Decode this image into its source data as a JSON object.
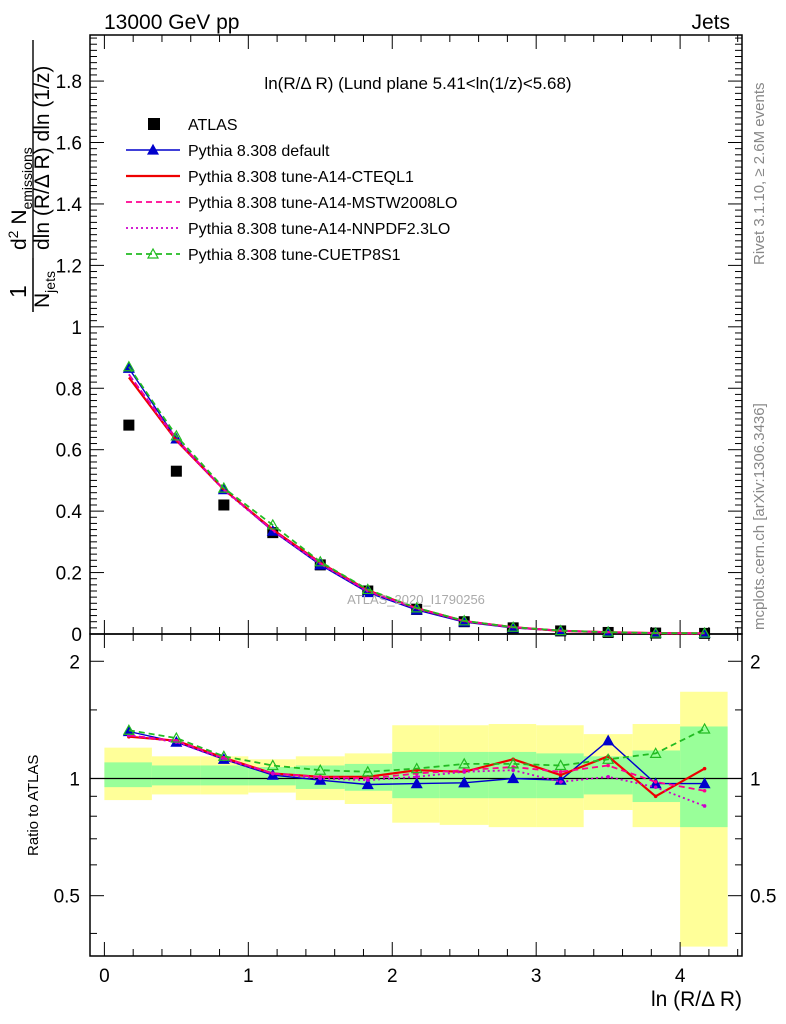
{
  "header": {
    "left": "13000 GeV pp",
    "right": "Jets"
  },
  "side_text": {
    "rivet": "Rivet 3.1.10, ≥ 2.6M events",
    "mcplots": "mcplots.cern.ch [arXiv:1306.3436]"
  },
  "watermark": "ATLAS_2020_I1790256",
  "chart_data": [
    {
      "type": "scatter",
      "panel": "main",
      "title": "ln(R/Δ R) (Lund plane 5.41<ln(1/z)<5.68)",
      "ylabel": "1/N_jets d²N_emissions / dln(R/Δ R) dln(1/z)",
      "ylim": [
        0,
        1.95
      ],
      "yticks": [
        "0",
        "0.2",
        "0.4",
        "0.6",
        "0.8",
        "1",
        "1.2",
        "1.4",
        "1.6",
        "1.8"
      ],
      "x": [
        0.17,
        0.5,
        0.83,
        1.17,
        1.5,
        1.83,
        2.17,
        2.5,
        2.84,
        3.17,
        3.5,
        3.83,
        4.17
      ],
      "series": [
        {
          "name": "ATLAS",
          "color": "#000000",
          "style": "marker-square",
          "values": [
            0.68,
            0.53,
            0.42,
            0.33,
            0.225,
            0.14,
            0.08,
            0.04,
            0.02,
            0.01,
            0.005,
            0.003,
            0.002
          ]
        },
        {
          "name": "Pythia 8.308 default",
          "color": "#0000cc",
          "style": "line-triangle",
          "values": [
            0.865,
            0.635,
            0.47,
            0.335,
            0.225,
            0.135,
            0.078,
            0.039,
            0.02,
            0.01,
            0.006,
            0.003,
            0.002
          ]
        },
        {
          "name": "Pythia 8.308 tune-A14-CTEQL1",
          "color": "#ee0000",
          "style": "solid",
          "values": [
            0.835,
            0.63,
            0.47,
            0.34,
            0.232,
            0.142,
            0.084,
            0.042,
            0.022,
            0.01,
            0.006,
            0.003,
            0.002
          ]
        },
        {
          "name": "Pythia 8.308 tune-A14-MSTW2008LO",
          "color": "#ff0090",
          "style": "dashed",
          "values": [
            0.845,
            0.635,
            0.47,
            0.338,
            0.23,
            0.14,
            0.083,
            0.042,
            0.022,
            0.011,
            0.006,
            0.003,
            0.002
          ]
        },
        {
          "name": "Pythia 8.308 tune-A14-NNPDF2.3LO",
          "color": "#cc00cc",
          "style": "dotted",
          "values": [
            0.845,
            0.63,
            0.468,
            0.336,
            0.228,
            0.138,
            0.082,
            0.042,
            0.021,
            0.01,
            0.005,
            0.003,
            0.002
          ]
        },
        {
          "name": "Pythia 8.308 tune-CUETP8S1",
          "color": "#22bb22",
          "style": "dashed-open-triangle",
          "values": [
            0.87,
            0.645,
            0.475,
            0.355,
            0.235,
            0.145,
            0.085,
            0.043,
            0.022,
            0.011,
            0.006,
            0.003,
            0.003
          ]
        }
      ]
    },
    {
      "type": "line",
      "panel": "ratio",
      "ylabel": "Ratio to ATLAS",
      "xlabel": "ln (R/Δ R)",
      "ylim": [
        0.35,
        2.35
      ],
      "yscale": "log",
      "yticks": [
        "0.5",
        "1",
        "2"
      ],
      "xticks": [
        "0",
        "1",
        "2",
        "3",
        "4"
      ],
      "xlim": [
        -0.1,
        4.43
      ],
      "bin_edges": [
        0,
        0.33,
        0.67,
        1.0,
        1.33,
        1.67,
        2.0,
        2.33,
        2.67,
        3.0,
        3.33,
        3.67,
        4.0,
        4.33
      ],
      "bands": {
        "outer_color": "#ffff99",
        "inner_color": "#99ff99",
        "outer": [
          [
            0.88,
            1.2
          ],
          [
            0.91,
            1.14
          ],
          [
            0.91,
            1.14
          ],
          [
            0.92,
            1.12
          ],
          [
            0.88,
            1.14
          ],
          [
            0.86,
            1.16
          ],
          [
            0.77,
            1.37
          ],
          [
            0.76,
            1.37
          ],
          [
            0.75,
            1.38
          ],
          [
            0.75,
            1.37
          ],
          [
            0.83,
            1.3
          ],
          [
            0.75,
            1.38
          ],
          [
            0.37,
            1.67
          ]
        ],
        "inner": [
          [
            0.95,
            1.1
          ],
          [
            0.96,
            1.08
          ],
          [
            0.96,
            1.08
          ],
          [
            0.96,
            1.07
          ],
          [
            0.94,
            1.08
          ],
          [
            0.93,
            1.09
          ],
          [
            0.89,
            1.17
          ],
          [
            0.89,
            1.17
          ],
          [
            0.89,
            1.17
          ],
          [
            0.89,
            1.16
          ],
          [
            0.91,
            1.14
          ],
          [
            0.87,
            1.18
          ],
          [
            0.75,
            1.36
          ]
        ]
      },
      "x": [
        0.17,
        0.5,
        0.83,
        1.17,
        1.5,
        1.83,
        2.17,
        2.5,
        2.84,
        3.17,
        3.5,
        3.83,
        4.17
      ],
      "series": [
        {
          "name": "Pythia 8.308 default",
          "color": "#0000cc",
          "style": "line-triangle",
          "values": [
            1.32,
            1.24,
            1.12,
            1.02,
            0.99,
            0.965,
            0.97,
            0.975,
            1.0,
            0.99,
            1.25,
            0.97,
            0.97
          ]
        },
        {
          "name": "Pythia 8.308 tune-A14-CTEQL1",
          "color": "#ee0000",
          "style": "solid",
          "values": [
            1.28,
            1.25,
            1.13,
            1.03,
            1.01,
            1.01,
            1.05,
            1.04,
            1.12,
            1.02,
            1.14,
            0.9,
            1.06
          ]
        },
        {
          "name": "Pythia 8.308 tune-A14-MSTW2008LO",
          "color": "#ff0090",
          "style": "dashed",
          "values": [
            1.29,
            1.25,
            1.13,
            1.03,
            1.01,
            1.0,
            1.03,
            1.05,
            1.07,
            1.04,
            1.08,
            0.98,
            0.93
          ]
        },
        {
          "name": "Pythia 8.308 tune-A14-NNPDF2.3LO",
          "color": "#cc00cc",
          "style": "dotted",
          "values": [
            1.29,
            1.24,
            1.12,
            1.03,
            1.0,
            0.99,
            1.01,
            1.04,
            1.05,
            0.98,
            1.01,
            0.95,
            0.85
          ]
        },
        {
          "name": "Pythia 8.308 tune-CUETP8S1",
          "color": "#22bb22",
          "style": "dashed-open-triangle",
          "values": [
            1.33,
            1.27,
            1.14,
            1.08,
            1.05,
            1.04,
            1.06,
            1.09,
            1.09,
            1.08,
            1.12,
            1.16,
            1.34
          ]
        }
      ]
    }
  ]
}
